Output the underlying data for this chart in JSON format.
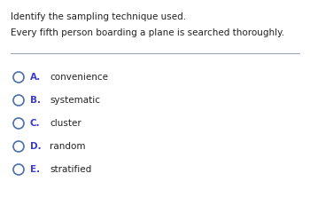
{
  "title_line1": "Identify the sampling technique used.",
  "title_line2": "Every fifth person boarding a plane is searched thoroughly.",
  "options": [
    {
      "letter": "A.",
      "text": "convenience"
    },
    {
      "letter": "B.",
      "text": "systematic"
    },
    {
      "letter": "C.",
      "text": "cluster"
    },
    {
      "letter": "D.",
      "text": "random"
    },
    {
      "letter": "E.",
      "text": "stratified"
    }
  ],
  "bg_color": "#ffffff",
  "text_color": "#222222",
  "circle_color": "#4a6fa5",
  "letter_color": "#3a3ad4",
  "title_fontsize": 7.5,
  "option_fontsize": 7.5,
  "separator_color": "#9aa5b8"
}
